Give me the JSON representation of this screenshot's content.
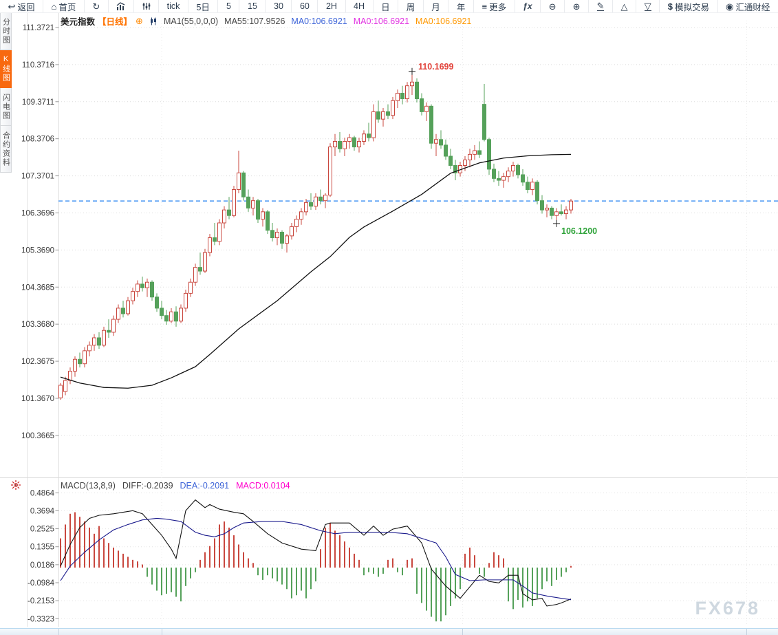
{
  "toolbar": {
    "items": [
      {
        "label": "返回"
      },
      {
        "label": "首页"
      },
      {
        "label": ""
      },
      {
        "label": ""
      },
      {
        "label": ""
      },
      {
        "label": "tick"
      },
      {
        "label": "5日"
      },
      {
        "label": "5"
      },
      {
        "label": "15"
      },
      {
        "label": "30"
      },
      {
        "label": "60"
      },
      {
        "label": "2H"
      },
      {
        "label": "4H"
      },
      {
        "label": "日"
      },
      {
        "label": "周"
      },
      {
        "label": "月"
      },
      {
        "label": "年"
      },
      {
        "label": "更多"
      },
      {
        "label": "fx"
      },
      {
        "label": ""
      },
      {
        "label": ""
      },
      {
        "label": ""
      },
      {
        "label": ""
      },
      {
        "label": ""
      },
      {
        "label": "模拟交易"
      },
      {
        "label": "汇通财经"
      }
    ]
  },
  "sidebar": {
    "tabs": [
      {
        "label": "分时图"
      },
      {
        "label": "K线图"
      },
      {
        "label": "闪电图"
      },
      {
        "label": "合约资料"
      }
    ]
  },
  "main_header": {
    "symbol": "美元指数",
    "period": "【日线】",
    "ma_formula": "MA1(55,0,0,0)",
    "ma55": "MA55:107.9526",
    "ma_values": [
      {
        "text": "MA0:106.6921"
      },
      {
        "text": "MA0:106.6921"
      },
      {
        "text": "MA0:106.6921"
      }
    ]
  },
  "macd_header": {
    "formula": "MACD(13,8,9)",
    "diff": "DIFF:-0.2039",
    "dea": "DEA:-0.2091",
    "macd": "MACD:0.0104"
  },
  "watermark": "FX678",
  "colors": {
    "up": "#c9473e",
    "down": "#55a15a",
    "ma55": "#111111",
    "price_line": "#1e7ff0",
    "diff": "#111111",
    "dea": "#1a1a8c",
    "accent_orange": "#f8690f",
    "period_orange": "#ff7300",
    "ma_blue": "#3d64d8",
    "ma_magenta": "#e131e1",
    "ma_orange": "#ff9800",
    "macd_magenta": "#ff00cc",
    "annotation_high": "#e2443c",
    "annotation_low": "#2fa33a",
    "watermark": "#cfd8e0",
    "toolbar_text": "#2e3e50",
    "grid": "#dcdcdc"
  },
  "chart_data": {
    "type": "candlestick+macd",
    "main": {
      "title": "美元指数 日线",
      "y_ticks": [
        "111.3721",
        "110.3716",
        "109.3711",
        "108.3706",
        "107.3701",
        "106.3696",
        "105.3690",
        "104.3685",
        "103.3680",
        "102.3675",
        "101.3670",
        "100.3665"
      ],
      "price_line": 106.6921,
      "high_annotation": {
        "label": "110.1699",
        "price": 110.1699,
        "index": 73
      },
      "low_annotation": {
        "label": "106.1200",
        "price": 106.12,
        "index": 103
      },
      "vertical_grid_indices": [
        21,
        83.5,
        142.5
      ],
      "candles": [
        [
          101.38,
          101.78,
          101.33,
          101.72
        ],
        [
          101.55,
          101.95,
          101.45,
          101.85
        ],
        [
          101.85,
          102.2,
          101.75,
          102.1
        ],
        [
          102.1,
          102.5,
          101.95,
          102.42
        ],
        [
          102.42,
          102.6,
          102.2,
          102.3
        ],
        [
          102.3,
          102.75,
          102.2,
          102.65
        ],
        [
          102.65,
          102.9,
          102.5,
          102.8
        ],
        [
          102.8,
          103.1,
          102.65,
          103.0
        ],
        [
          103.0,
          103.15,
          102.7,
          102.8
        ],
        [
          102.8,
          103.3,
          102.75,
          103.2
        ],
        [
          103.2,
          103.5,
          103.0,
          103.15
        ],
        [
          103.15,
          103.6,
          103.05,
          103.5
        ],
        [
          103.5,
          103.9,
          103.4,
          103.8
        ],
        [
          103.8,
          104.0,
          103.55,
          103.65
        ],
        [
          103.65,
          104.1,
          103.6,
          104.0
        ],
        [
          104.0,
          104.35,
          103.9,
          104.25
        ],
        [
          104.25,
          104.55,
          104.1,
          104.45
        ],
        [
          104.45,
          104.65,
          104.25,
          104.35
        ],
        [
          104.35,
          104.6,
          104.1,
          104.5
        ],
        [
          104.5,
          104.55,
          104.0,
          104.1
        ],
        [
          104.1,
          104.2,
          103.7,
          103.8
        ],
        [
          103.8,
          104.0,
          103.5,
          103.6
        ],
        [
          103.6,
          103.75,
          103.35,
          103.45
        ],
        [
          103.45,
          103.8,
          103.4,
          103.7
        ],
        [
          103.7,
          103.85,
          103.3,
          103.45
        ],
        [
          103.45,
          103.9,
          103.4,
          103.8
        ],
        [
          103.8,
          104.3,
          103.7,
          104.2
        ],
        [
          104.2,
          104.6,
          104.1,
          104.5
        ],
        [
          104.5,
          105.0,
          104.4,
          104.9
        ],
        [
          104.9,
          105.3,
          104.7,
          104.8
        ],
        [
          104.8,
          105.4,
          104.75,
          105.3
        ],
        [
          105.3,
          105.8,
          105.2,
          105.7
        ],
        [
          105.7,
          106.1,
          105.5,
          105.6
        ],
        [
          105.6,
          106.2,
          105.5,
          106.1
        ],
        [
          106.1,
          106.55,
          105.95,
          106.45
        ],
        [
          106.45,
          106.8,
          106.2,
          106.3
        ],
        [
          106.3,
          107.1,
          106.25,
          107.0
        ],
        [
          107.0,
          108.05,
          106.9,
          107.45
        ],
        [
          107.45,
          107.5,
          106.7,
          106.8
        ],
        [
          106.8,
          107.0,
          106.4,
          106.5
        ],
        [
          106.5,
          106.8,
          106.3,
          106.7
        ],
        [
          106.7,
          106.75,
          106.1,
          106.2
        ],
        [
          106.2,
          106.5,
          106.0,
          106.4
        ],
        [
          106.4,
          106.45,
          105.8,
          105.9
        ],
        [
          105.9,
          106.1,
          105.6,
          105.7
        ],
        [
          105.7,
          105.95,
          105.5,
          105.85
        ],
        [
          105.85,
          105.9,
          105.4,
          105.55
        ],
        [
          105.55,
          105.8,
          105.3,
          105.75
        ],
        [
          105.75,
          106.1,
          105.65,
          106.0
        ],
        [
          106.0,
          106.3,
          105.85,
          106.2
        ],
        [
          106.2,
          106.5,
          106.05,
          106.4
        ],
        [
          106.4,
          106.75,
          106.3,
          106.65
        ],
        [
          106.65,
          106.9,
          106.45,
          106.55
        ],
        [
          106.55,
          106.9,
          106.45,
          106.8
        ],
        [
          106.8,
          107.0,
          106.6,
          106.7
        ],
        [
          106.7,
          106.9,
          106.5,
          106.85
        ],
        [
          106.85,
          108.25,
          106.8,
          108.15
        ],
        [
          108.15,
          108.5,
          107.9,
          108.3
        ],
        [
          108.3,
          108.55,
          108.0,
          108.1
        ],
        [
          108.1,
          108.4,
          107.9,
          108.3
        ],
        [
          108.3,
          108.5,
          108.1,
          108.4
        ],
        [
          108.4,
          108.45,
          108.05,
          108.15
        ],
        [
          108.15,
          108.4,
          108.0,
          108.3
        ],
        [
          108.3,
          108.6,
          108.2,
          108.5
        ],
        [
          108.5,
          108.8,
          108.3,
          108.4
        ],
        [
          108.4,
          109.3,
          108.3,
          109.1
        ],
        [
          109.1,
          109.4,
          108.8,
          108.9
        ],
        [
          108.9,
          109.2,
          108.7,
          109.1
        ],
        [
          109.1,
          109.3,
          108.9,
          109.0
        ],
        [
          109.0,
          109.5,
          108.9,
          109.4
        ],
        [
          109.4,
          109.7,
          109.2,
          109.6
        ],
        [
          109.6,
          109.8,
          109.3,
          109.45
        ],
        [
          109.45,
          109.9,
          109.35,
          109.8
        ],
        [
          109.8,
          110.17,
          109.55,
          109.9
        ],
        [
          109.9,
          110.0,
          109.35,
          109.45
        ],
        [
          109.45,
          109.6,
          109.0,
          109.1
        ],
        [
          109.1,
          109.35,
          108.85,
          109.25
        ],
        [
          109.25,
          109.3,
          108.1,
          108.25
        ],
        [
          108.25,
          108.5,
          107.9,
          108.35
        ],
        [
          108.35,
          108.6,
          108.1,
          108.2
        ],
        [
          108.2,
          108.35,
          107.8,
          107.9
        ],
        [
          107.9,
          108.1,
          107.55,
          107.65
        ],
        [
          107.65,
          107.8,
          107.25,
          107.45
        ],
        [
          107.45,
          107.75,
          107.35,
          107.65
        ],
        [
          107.65,
          107.9,
          107.5,
          107.8
        ],
        [
          107.8,
          108.1,
          107.6,
          107.95
        ],
        [
          107.95,
          108.2,
          107.8,
          108.05
        ],
        [
          108.05,
          108.3,
          107.85,
          107.95
        ],
        [
          109.3,
          109.85,
          108.3,
          108.35
        ],
        [
          108.35,
          108.4,
          107.4,
          107.55
        ],
        [
          107.55,
          107.7,
          107.2,
          107.3
        ],
        [
          107.3,
          107.5,
          107.1,
          107.25
        ],
        [
          107.25,
          107.45,
          107.05,
          107.35
        ],
        [
          107.35,
          107.6,
          107.2,
          107.5
        ],
        [
          107.5,
          107.75,
          107.35,
          107.65
        ],
        [
          107.65,
          107.7,
          107.3,
          107.4
        ],
        [
          107.4,
          107.55,
          107.1,
          107.2
        ],
        [
          107.2,
          107.35,
          106.9,
          107.0
        ],
        [
          107.0,
          107.3,
          106.85,
          107.2
        ],
        [
          107.2,
          107.25,
          106.6,
          106.7
        ],
        [
          106.7,
          106.85,
          106.35,
          106.45
        ],
        [
          106.45,
          106.6,
          106.25,
          106.5
        ],
        [
          106.5,
          106.55,
          106.2,
          106.3
        ],
        [
          106.3,
          106.5,
          106.12,
          106.4
        ],
        [
          106.4,
          106.6,
          106.3,
          106.35
        ],
        [
          106.35,
          106.55,
          106.2,
          106.45
        ],
        [
          106.45,
          106.75,
          106.35,
          106.69
        ]
      ],
      "ma55_points": [
        [
          0,
          101.94
        ],
        [
          4,
          101.78
        ],
        [
          9,
          101.66
        ],
        [
          14,
          101.64
        ],
        [
          19,
          101.72
        ],
        [
          23,
          101.92
        ],
        [
          28,
          102.22
        ],
        [
          31,
          102.55
        ],
        [
          37,
          103.24
        ],
        [
          45,
          104.0
        ],
        [
          52,
          104.78
        ],
        [
          56,
          105.19
        ],
        [
          60,
          105.71
        ],
        [
          63,
          105.99
        ],
        [
          69,
          106.42
        ],
        [
          75,
          106.87
        ],
        [
          81,
          107.44
        ],
        [
          87,
          107.72
        ],
        [
          92,
          107.85
        ],
        [
          97,
          107.91
        ],
        [
          102,
          107.94
        ],
        [
          106,
          107.95
        ]
      ]
    },
    "macd": {
      "y_ticks": [
        "0.4864",
        "0.3694",
        "0.2525",
        "0.1355",
        "0.0186",
        "-0.0984",
        "-0.2153",
        "-0.3323"
      ],
      "histogram": [
        0.19,
        0.28,
        0.35,
        0.36,
        0.33,
        0.3,
        0.26,
        0.22,
        0.27,
        0.19,
        0.16,
        0.13,
        0.11,
        0.09,
        0.07,
        0.05,
        0.04,
        0.02,
        -0.06,
        -0.11,
        -0.15,
        -0.18,
        -0.17,
        -0.16,
        -0.19,
        -0.22,
        -0.12,
        -0.07,
        -0.03,
        0.05,
        0.1,
        0.14,
        0.19,
        0.28,
        0.3,
        0.26,
        0.21,
        0.15,
        0.1,
        0.06,
        0.03,
        -0.05,
        -0.08,
        -0.05,
        -0.07,
        -0.09,
        -0.11,
        -0.14,
        -0.2,
        -0.18,
        -0.15,
        -0.2,
        -0.14,
        -0.09,
        0.12,
        0.26,
        0.29,
        0.24,
        0.21,
        0.17,
        0.13,
        0.09,
        0.05,
        -0.05,
        -0.03,
        -0.04,
        -0.06,
        -0.04,
        0.05,
        0.06,
        -0.03,
        -0.05,
        0.05,
        0.06,
        -0.17,
        -0.23,
        -0.28,
        -0.32,
        -0.35,
        -0.35,
        -0.31,
        -0.25,
        -0.2,
        -0.14,
        0.09,
        0.13,
        0.08,
        -0.04,
        -0.06,
        0.03,
        0.1,
        0.08,
        0.06,
        -0.22,
        -0.27,
        -0.21,
        -0.26,
        -0.22,
        -0.25,
        -0.2,
        -0.14,
        -0.09,
        -0.12,
        -0.08,
        -0.06,
        -0.03,
        0.0104
      ],
      "diff_points": [
        [
          0,
          0.01
        ],
        [
          2,
          0.15
        ],
        [
          4,
          0.26
        ],
        [
          6,
          0.32
        ],
        [
          8,
          0.34
        ],
        [
          11,
          0.35
        ],
        [
          13,
          0.36
        ],
        [
          15,
          0.37
        ],
        [
          17,
          0.35
        ],
        [
          19,
          0.28
        ],
        [
          21,
          0.21
        ],
        [
          23,
          0.12
        ],
        [
          24,
          0.06
        ],
        [
          26,
          0.37
        ],
        [
          28,
          0.44
        ],
        [
          30,
          0.39
        ],
        [
          31,
          0.41
        ],
        [
          33,
          0.38
        ],
        [
          36,
          0.36
        ],
        [
          38,
          0.35
        ],
        [
          40,
          0.3
        ],
        [
          43,
          0.22
        ],
        [
          46,
          0.16
        ],
        [
          50,
          0.12
        ],
        [
          53,
          0.11
        ],
        [
          55,
          0.28
        ],
        [
          56,
          0.29
        ],
        [
          58,
          0.29
        ],
        [
          60,
          0.29
        ],
        [
          63,
          0.21
        ],
        [
          65,
          0.27
        ],
        [
          67,
          0.21
        ],
        [
          69,
          0.25
        ],
        [
          72,
          0.27
        ],
        [
          75,
          0.16
        ],
        [
          77,
          -0.01
        ],
        [
          80,
          -0.12
        ],
        [
          83,
          -0.2
        ],
        [
          87,
          -0.05
        ],
        [
          89,
          -0.09
        ],
        [
          91,
          -0.1
        ],
        [
          93,
          -0.05
        ],
        [
          95,
          -0.05
        ],
        [
          96,
          -0.17
        ],
        [
          98,
          -0.21
        ],
        [
          100,
          -0.2
        ],
        [
          101,
          -0.25
        ],
        [
          103,
          -0.24
        ],
        [
          104,
          -0.23
        ],
        [
          106,
          -0.204
        ]
      ],
      "dea_points": [
        [
          0,
          -0.085
        ],
        [
          2,
          0.01
        ],
        [
          5,
          0.1
        ],
        [
          8,
          0.18
        ],
        [
          11,
          0.245
        ],
        [
          14,
          0.28
        ],
        [
          17,
          0.31
        ],
        [
          20,
          0.32
        ],
        [
          22,
          0.315
        ],
        [
          25,
          0.3
        ],
        [
          28,
          0.23
        ],
        [
          30,
          0.21
        ],
        [
          32,
          0.2
        ],
        [
          34,
          0.22
        ],
        [
          36,
          0.26
        ],
        [
          38,
          0.29
        ],
        [
          42,
          0.3
        ],
        [
          46,
          0.3
        ],
        [
          50,
          0.28
        ],
        [
          54,
          0.24
        ],
        [
          57,
          0.22
        ],
        [
          60,
          0.23
        ],
        [
          64,
          0.23
        ],
        [
          68,
          0.23
        ],
        [
          72,
          0.22
        ],
        [
          75,
          0.19
        ],
        [
          78,
          0.16
        ],
        [
          80,
          0.07
        ],
        [
          82,
          -0.045
        ],
        [
          85,
          -0.085
        ],
        [
          88,
          -0.08
        ],
        [
          91,
          -0.08
        ],
        [
          94,
          -0.08
        ],
        [
          96,
          -0.12
        ],
        [
          98,
          -0.165
        ],
        [
          101,
          -0.185
        ],
        [
          104,
          -0.2
        ],
        [
          106,
          -0.209
        ]
      ]
    }
  }
}
